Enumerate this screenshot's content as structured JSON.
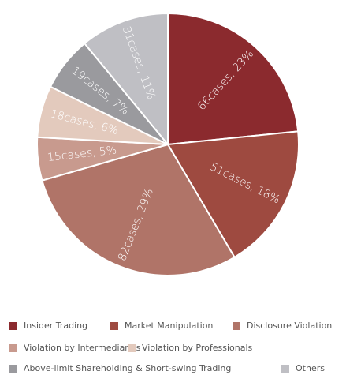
{
  "chart_data": {
    "type": "pie",
    "categories": [
      "Insider Trading",
      "Market Manipulation",
      "Disclosure Violation",
      "Violation by Intermediaries",
      "Violation by Professionals",
      "Above-limit Shareholding & Short-swing Trading",
      "Others"
    ],
    "values": [
      66,
      51,
      82,
      15,
      18,
      19,
      31
    ],
    "value_labels": [
      "66cases, 23%",
      "51cases, 18%",
      "82cases, 29%",
      "15cases, 5%",
      "18cases, 6%",
      "19cases, 7%",
      "31cases, 11%"
    ],
    "colors": [
      "#8b2a2e",
      "#9e4a40",
      "#b07468",
      "#c89a8e",
      "#e3cabd",
      "#9a9a9e",
      "#bfbfc4"
    ],
    "legend": "bottom"
  }
}
